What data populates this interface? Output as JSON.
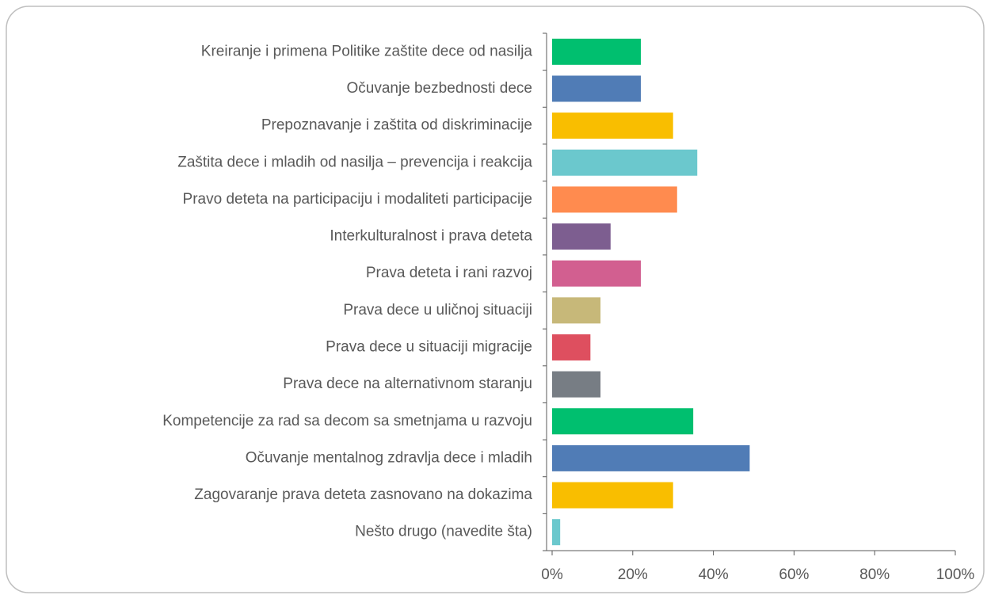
{
  "chart_data": {
    "type": "hbar",
    "categories": [
      "Kreiranje i primena Politike zaštite dece od nasilja",
      "Očuvanje bezbednosti dece",
      "Prepoznavanje i zaštita od diskriminacije",
      "Zaštita dece i mladih od nasilja – prevencija i reakcija",
      "Pravo deteta na participaciju i modaliteti participacije",
      "Interkulturalnost i prava deteta",
      "Prava deteta i rani razvoj",
      "Prava dece u uličnoj situaciji",
      "Prava dece u situaciji migracije",
      "Prava dece na alternativnom staranju",
      "Kompetencije za rad sa decom sa smetnjama u razvoju",
      "Očuvanje mentalnog zdravlja dece i mladih",
      "Zagovaranje prava deteta zasnovano na dokazima",
      "Nešto drugo (navedite šta)"
    ],
    "values": [
      22,
      22,
      30,
      36,
      31,
      14.5,
      22,
      12,
      9.5,
      12,
      35,
      49,
      30,
      2
    ],
    "colors": [
      "#00bf6f",
      "#507cb6",
      "#f9be00",
      "#6bc8cd",
      "#ff8b4f",
      "#7d5e90",
      "#d25f90",
      "#c7b879",
      "#de4f5f",
      "#777d84",
      "#00bf6f",
      "#507cb6",
      "#f9be00",
      "#6bc8cd"
    ],
    "xlim": [
      0,
      100
    ],
    "xticks": [
      {
        "value": 0,
        "label": "0%"
      },
      {
        "value": 20,
        "label": "20%"
      },
      {
        "value": 40,
        "label": "40%"
      },
      {
        "value": 60,
        "label": "60%"
      },
      {
        "value": 80,
        "label": "80%"
      },
      {
        "value": 100,
        "label": "100%"
      }
    ]
  }
}
